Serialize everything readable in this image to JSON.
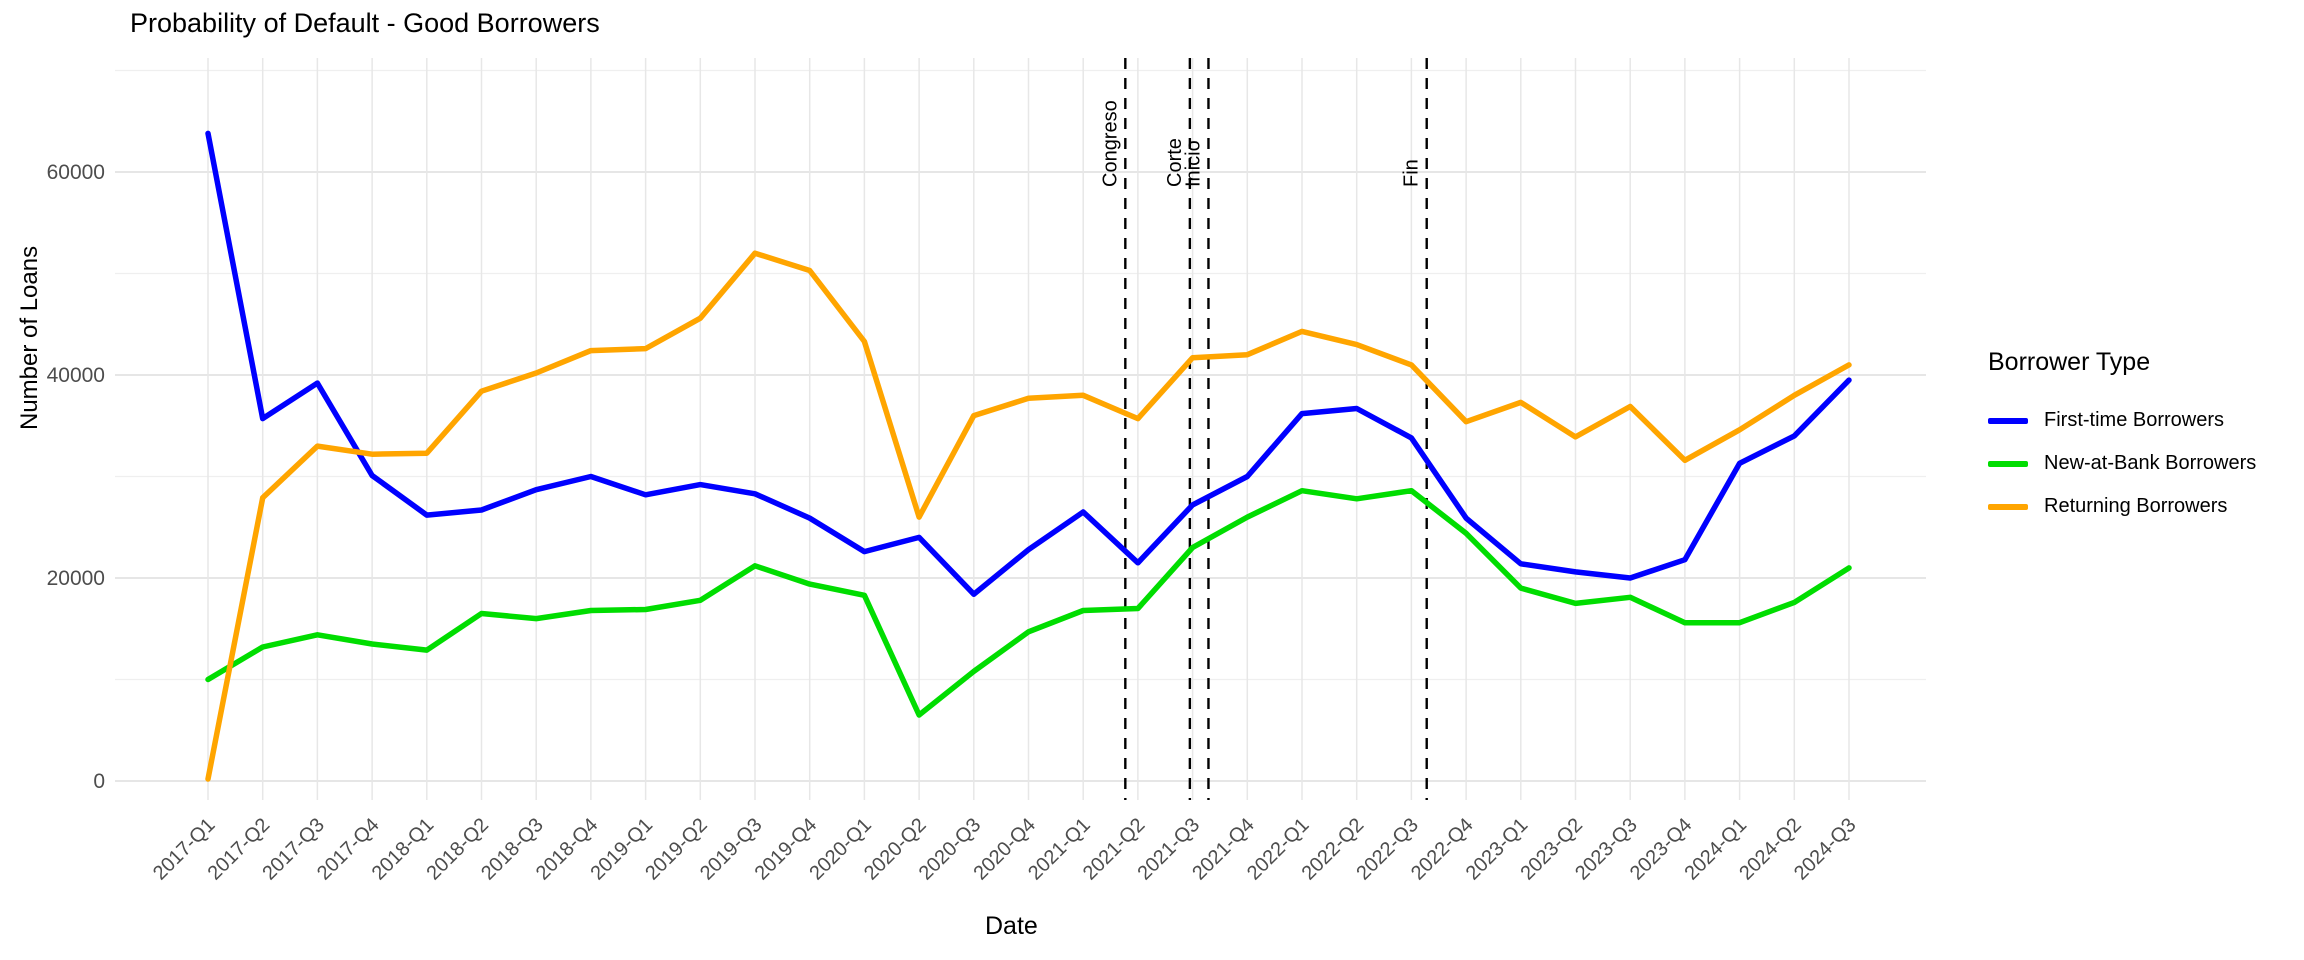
{
  "title": "Probability of Default - Good Borrowers",
  "chart_data": {
    "type": "line",
    "title": "Probability of Default - Good Borrowers",
    "xlabel": "Date",
    "ylabel": "Number of Loans",
    "legend_title": "Borrower Type",
    "legend_position": "right",
    "grid": "major-and-minor-on",
    "background": "#ffffff",
    "categories": [
      "2017-Q1",
      "2017-Q2",
      "2017-Q3",
      "2017-Q4",
      "2018-Q1",
      "2018-Q2",
      "2018-Q3",
      "2018-Q4",
      "2019-Q1",
      "2019-Q2",
      "2019-Q3",
      "2019-Q4",
      "2020-Q1",
      "2020-Q2",
      "2020-Q3",
      "2020-Q4",
      "2021-Q1",
      "2021-Q2",
      "2021-Q3",
      "2021-Q4",
      "2022-Q1",
      "2022-Q2",
      "2022-Q3",
      "2022-Q4",
      "2023-Q1",
      "2023-Q2",
      "2023-Q3",
      "2023-Q4",
      "2024-Q1",
      "2024-Q2",
      "2024-Q3"
    ],
    "yticks": [
      0,
      20000,
      40000,
      60000
    ],
    "ylim": [
      0,
      71000
    ],
    "series": [
      {
        "name": "First-time Borrowers",
        "color": "#0000ff",
        "values": [
          63800,
          35700,
          39200,
          30100,
          26200,
          26700,
          28700,
          30000,
          28200,
          29200,
          28300,
          25900,
          22600,
          24000,
          18400,
          22800,
          26500,
          21500,
          27200,
          30000,
          36200,
          36700,
          33800,
          25900,
          21400,
          20600,
          20000,
          21800,
          31300,
          34000,
          39500
        ]
      },
      {
        "name": "New-at-Bank Borrowers",
        "color": "#00dd00",
        "values": [
          10000,
          13200,
          14400,
          13500,
          12900,
          16500,
          16000,
          16800,
          16900,
          17800,
          21200,
          19400,
          18300,
          6500,
          10800,
          14700,
          16800,
          17000,
          23000,
          26000,
          28600,
          27800,
          28600,
          24400,
          19000,
          17500,
          18100,
          15600,
          15600,
          17600,
          21000
        ]
      },
      {
        "name": "Returning Borrowers",
        "color": "#ffa500",
        "values": [
          200,
          27900,
          33000,
          32200,
          32300,
          38400,
          40200,
          42400,
          42600,
          45600,
          52000,
          50300,
          43300,
          26000,
          36000,
          37700,
          38000,
          35700,
          41700,
          42000,
          44300,
          43000,
          41000,
          35400,
          37300,
          33900,
          36900,
          31600,
          34600,
          38000,
          41000
        ]
      }
    ],
    "vlines": [
      {
        "label": "Congreso",
        "x_index": 16.77
      },
      {
        "label": "Corte",
        "x_index": 17.95
      },
      {
        "label": "Inicio",
        "x_index": 18.29
      },
      {
        "label": "Fin",
        "x_index": 22.28
      }
    ]
  }
}
